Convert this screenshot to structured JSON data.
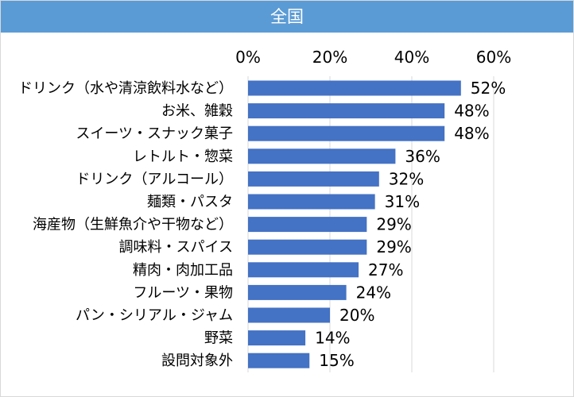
{
  "header": {
    "title": "全国"
  },
  "colors": {
    "title_bar": "#5b9bd5",
    "bar": "#4472c4",
    "grid": "#d9d9d9"
  },
  "chart_data": {
    "type": "bar",
    "orientation": "horizontal",
    "title": "全国",
    "xlim": [
      0,
      60
    ],
    "xticks": [
      0,
      20,
      40,
      60
    ],
    "xtick_labels": [
      "0%",
      "20%",
      "40%",
      "60%"
    ],
    "grid": true,
    "categories": [
      "ドリンク（水や清涼飲料水など）",
      "お米、雑穀",
      "スイーツ・スナック菓子",
      "レトルト・惣菜",
      "ドリンク（アルコール）",
      "麺類・パスタ",
      "海産物（生鮮魚介や干物など）",
      "調味料・スパイス",
      "精肉・肉加工品",
      "フルーツ・果物",
      "パン・シリアル・ジャム",
      "野菜",
      "設問対象外"
    ],
    "values": [
      52,
      48,
      48,
      36,
      32,
      31,
      29,
      29,
      27,
      24,
      20,
      14,
      15
    ],
    "data_labels": [
      "52%",
      "48%",
      "48%",
      "36%",
      "32%",
      "31%",
      "29%",
      "29%",
      "27%",
      "24%",
      "20%",
      "14%",
      "15%"
    ]
  }
}
